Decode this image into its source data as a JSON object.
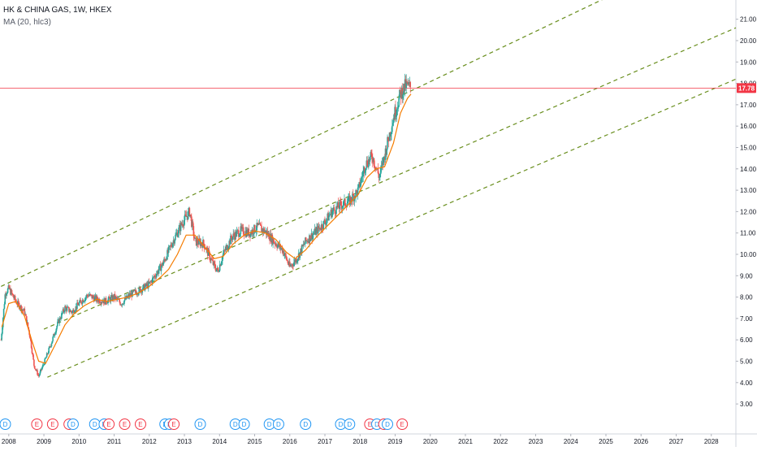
{
  "header": {
    "symbol_line": "HK & CHINA GAS, 1W, HKEX",
    "indicator_line": "MA (20, hlc3)"
  },
  "colors": {
    "candle_up": "#26a69a",
    "candle_down": "#ef5350",
    "ma": "#f57c00",
    "channel": "#6a8f1f",
    "price_line": "#f23645",
    "price_label_bg": "#f23645",
    "axis_text": "#131722",
    "dividend": "#2196f3",
    "earnings": "#f23645"
  },
  "chart_data": {
    "type": "candlestick",
    "title": "HK & CHINA GAS, 1W, HKEX",
    "indicator": "MA (20, hlc3)",
    "x_ticks": [
      "2008",
      "2009",
      "2010",
      "2011",
      "2012",
      "2013",
      "2014",
      "2015",
      "2016",
      "2017",
      "2018",
      "2019",
      "2020",
      "2021",
      "2022",
      "2023",
      "2024",
      "2025",
      "2026",
      "2027",
      "2028"
    ],
    "y_ticks": [
      "3.00",
      "4.00",
      "5.00",
      "6.00",
      "7.00",
      "8.00",
      "9.00",
      "10.00",
      "11.00",
      "12.00",
      "13.00",
      "14.00",
      "15.00",
      "16.00",
      "17.00",
      "18.00",
      "19.00",
      "20.00",
      "21.00"
    ],
    "xlim": [
      2007.75,
      2028.7
    ],
    "ylim": [
      2.7,
      21.9
    ],
    "last_price": "17.78",
    "last_price_value": 17.78,
    "price_path": [
      [
        2007.78,
        6.0
      ],
      [
        2007.9,
        8.2
      ],
      [
        2008.0,
        8.4
      ],
      [
        2008.2,
        7.8
      ],
      [
        2008.45,
        7.3
      ],
      [
        2008.6,
        6.2
      ],
      [
        2008.72,
        4.8
      ],
      [
        2008.85,
        4.3
      ],
      [
        2009.0,
        4.9
      ],
      [
        2009.2,
        5.8
      ],
      [
        2009.4,
        6.8
      ],
      [
        2009.6,
        7.5
      ],
      [
        2009.8,
        7.3
      ],
      [
        2010.0,
        7.7
      ],
      [
        2010.25,
        8.1
      ],
      [
        2010.5,
        7.9
      ],
      [
        2010.75,
        7.8
      ],
      [
        2011.0,
        8.0
      ],
      [
        2011.2,
        7.7
      ],
      [
        2011.45,
        8.1
      ],
      [
        2011.7,
        8.3
      ],
      [
        2012.0,
        8.6
      ],
      [
        2012.2,
        9.1
      ],
      [
        2012.4,
        9.6
      ],
      [
        2012.7,
        10.7
      ],
      [
        2012.95,
        11.5
      ],
      [
        2013.15,
        12.0
      ],
      [
        2013.3,
        10.6
      ],
      [
        2013.55,
        10.5
      ],
      [
        2013.8,
        9.6
      ],
      [
        2013.95,
        9.2
      ],
      [
        2014.1,
        10.0
      ],
      [
        2014.35,
        10.8
      ],
      [
        2014.6,
        11.1
      ],
      [
        2014.85,
        11.0
      ],
      [
        2015.1,
        11.3
      ],
      [
        2015.35,
        11.0
      ],
      [
        2015.55,
        10.6
      ],
      [
        2015.8,
        10.2
      ],
      [
        2016.0,
        9.4
      ],
      [
        2016.2,
        9.8
      ],
      [
        2016.45,
        10.6
      ],
      [
        2016.7,
        11.0
      ],
      [
        2016.95,
        11.4
      ],
      [
        2017.2,
        12.0
      ],
      [
        2017.45,
        12.3
      ],
      [
        2017.7,
        12.5
      ],
      [
        2017.95,
        13.0
      ],
      [
        2018.15,
        14.2
      ],
      [
        2018.35,
        14.6
      ],
      [
        2018.55,
        13.6
      ],
      [
        2018.75,
        15.0
      ],
      [
        2018.95,
        16.4
      ],
      [
        2019.15,
        17.5
      ],
      [
        2019.3,
        17.9
      ],
      [
        2019.45,
        17.8
      ]
    ],
    "ma_path": [
      [
        2007.8,
        6.6
      ],
      [
        2008.0,
        7.7
      ],
      [
        2008.2,
        7.8
      ],
      [
        2008.45,
        7.1
      ],
      [
        2008.65,
        6.0
      ],
      [
        2008.85,
        5.0
      ],
      [
        2009.05,
        4.9
      ],
      [
        2009.3,
        5.7
      ],
      [
        2009.6,
        6.7
      ],
      [
        2009.85,
        7.2
      ],
      [
        2010.15,
        7.6
      ],
      [
        2010.5,
        7.9
      ],
      [
        2010.8,
        7.8
      ],
      [
        2011.1,
        7.9
      ],
      [
        2011.4,
        8.0
      ],
      [
        2011.7,
        8.2
      ],
      [
        2012.0,
        8.5
      ],
      [
        2012.3,
        8.9
      ],
      [
        2012.55,
        9.3
      ],
      [
        2012.8,
        10.0
      ],
      [
        2013.05,
        10.9
      ],
      [
        2013.3,
        10.9
      ],
      [
        2013.55,
        10.4
      ],
      [
        2013.85,
        9.8
      ],
      [
        2014.1,
        9.9
      ],
      [
        2014.4,
        10.5
      ],
      [
        2014.7,
        10.9
      ],
      [
        2015.0,
        11.1
      ],
      [
        2015.3,
        11.0
      ],
      [
        2015.6,
        10.7
      ],
      [
        2015.9,
        10.1
      ],
      [
        2016.15,
        9.8
      ],
      [
        2016.45,
        10.2
      ],
      [
        2016.75,
        10.8
      ],
      [
        2017.05,
        11.3
      ],
      [
        2017.35,
        11.8
      ],
      [
        2017.65,
        12.3
      ],
      [
        2017.95,
        12.8
      ],
      [
        2018.2,
        13.6
      ],
      [
        2018.45,
        14.0
      ],
      [
        2018.7,
        14.1
      ],
      [
        2018.95,
        15.2
      ],
      [
        2019.15,
        16.6
      ],
      [
        2019.35,
        17.3
      ],
      [
        2019.45,
        17.5
      ]
    ],
    "channel_lines": [
      {
        "from": [
          2007.78,
          8.5
        ],
        "to": [
          2028.7,
          24.9
        ]
      },
      {
        "from": [
          2009.0,
          6.5
        ],
        "to": [
          2028.7,
          20.6
        ]
      },
      {
        "from": [
          2009.1,
          4.25
        ],
        "to": [
          2028.7,
          18.2
        ]
      }
    ],
    "events": [
      {
        "label": "D",
        "x": 2007.9
      },
      {
        "label": "E",
        "x": 2008.8
      },
      {
        "label": "E",
        "x": 2009.25
      },
      {
        "label": "E",
        "x": 2009.72
      },
      {
        "label": "D",
        "x": 2009.83
      },
      {
        "label": "D",
        "x": 2010.45
      },
      {
        "label": "D",
        "x": 2010.72
      },
      {
        "label": "E",
        "x": 2010.85
      },
      {
        "label": "E",
        "x": 2011.3
      },
      {
        "label": "E",
        "x": 2011.75
      },
      {
        "label": "D",
        "x": 2012.45
      },
      {
        "label": "D",
        "x": 2012.58
      },
      {
        "label": "E",
        "x": 2012.7
      },
      {
        "label": "D",
        "x": 2013.45
      },
      {
        "label": "D",
        "x": 2014.45
      },
      {
        "label": "D",
        "x": 2014.7
      },
      {
        "label": "D",
        "x": 2015.42
      },
      {
        "label": "D",
        "x": 2015.68
      },
      {
        "label": "D",
        "x": 2016.45
      },
      {
        "label": "D",
        "x": 2017.45
      },
      {
        "label": "D",
        "x": 2017.7
      },
      {
        "label": "E",
        "x": 2018.28
      },
      {
        "label": "D",
        "x": 2018.48
      },
      {
        "label": "E",
        "x": 2018.68
      },
      {
        "label": "D",
        "x": 2018.78
      },
      {
        "label": "E",
        "x": 2019.2
      }
    ]
  }
}
